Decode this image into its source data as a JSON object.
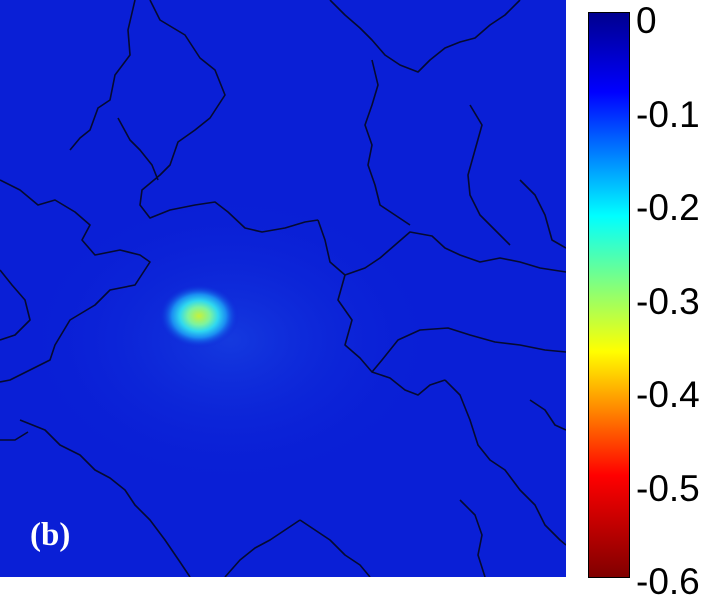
{
  "panel_label": "(b)",
  "map": {
    "background_color": "#0a1fd6",
    "coastline_color": "#050a30",
    "anomaly_peak_value": -0.32
  },
  "colorbar": {
    "ticks": [
      "0",
      "-0.1",
      "-0.2",
      "-0.3",
      "-0.4",
      "-0.5",
      "-0.6"
    ],
    "range": [
      -0.6,
      0
    ],
    "colormap": "jet",
    "colors": [
      "#00008f",
      "#0000ff",
      "#00ffff",
      "#ffff00",
      "#ff0000",
      "#800000"
    ]
  }
}
